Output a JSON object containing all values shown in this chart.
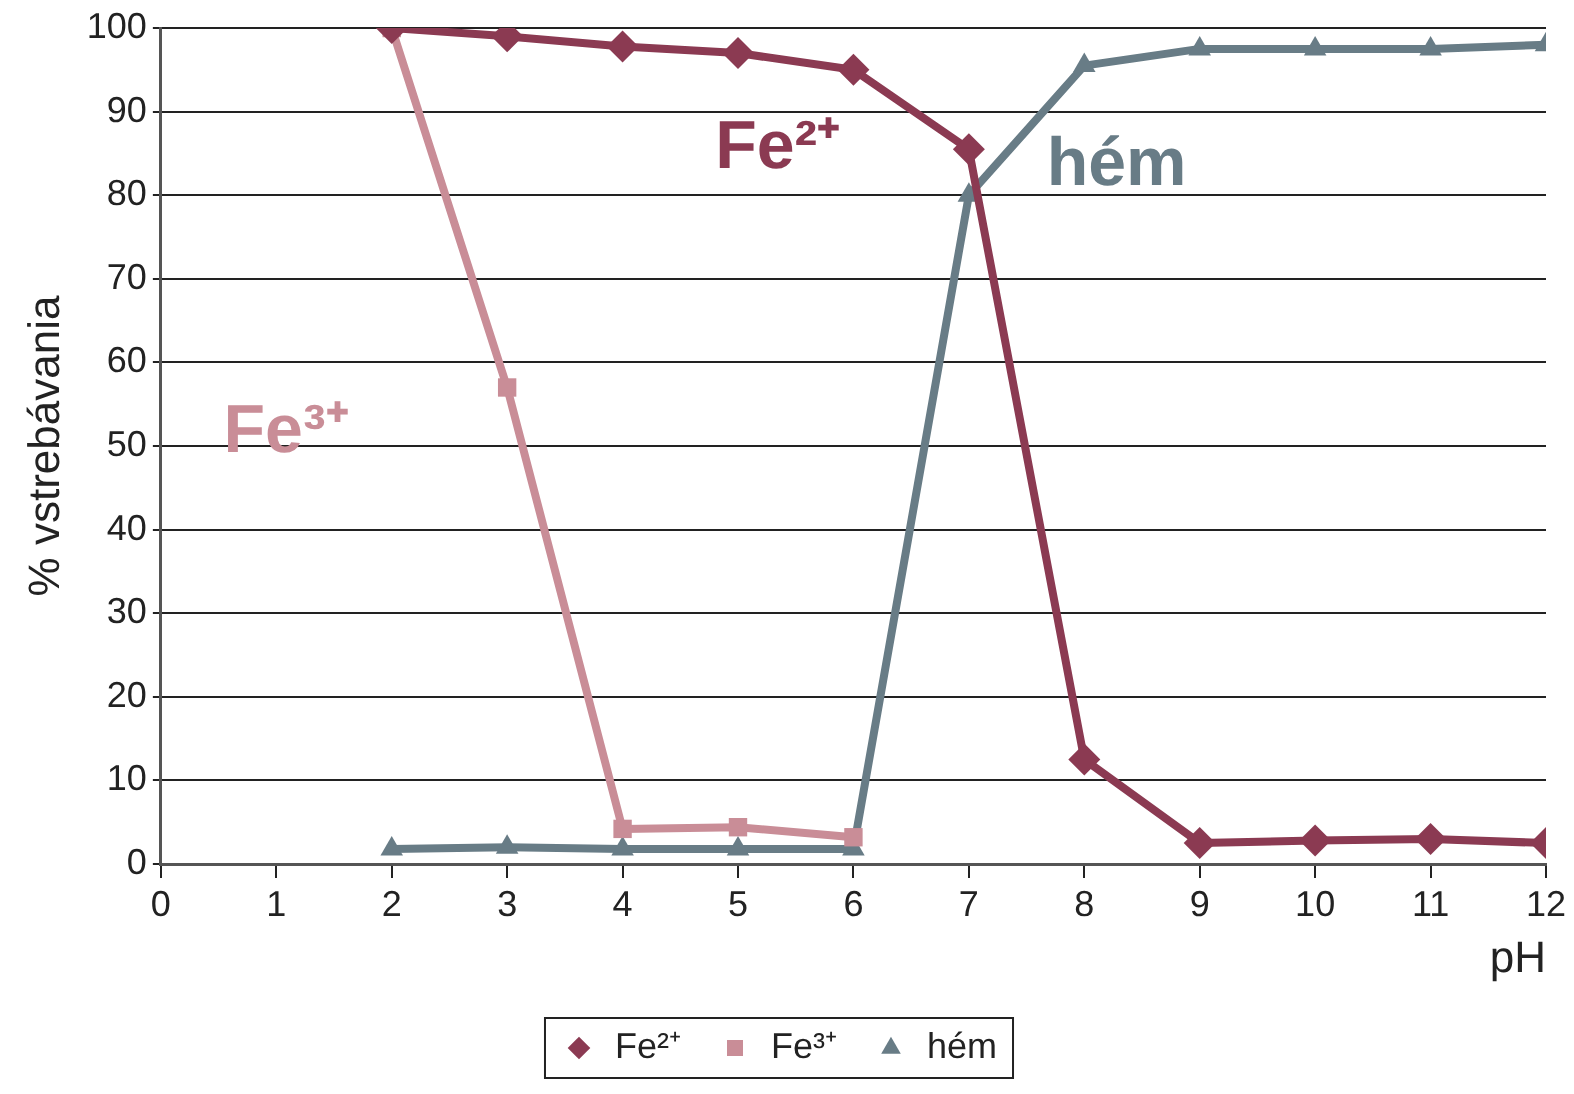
{
  "chart_data": {
    "type": "line",
    "xlabel": "pH",
    "ylabel": "% vstrebávania",
    "xlim": [
      0,
      12
    ],
    "xticks": [
      0,
      1,
      2,
      3,
      4,
      5,
      6,
      7,
      8,
      9,
      10,
      11,
      12
    ],
    "ylim": [
      0,
      100
    ],
    "yticks": [
      0,
      10,
      20,
      30,
      40,
      50,
      60,
      70,
      80,
      90,
      100
    ],
    "grid": "y",
    "legend": "bottom",
    "line_style": "solid",
    "series": [
      {
        "name": "Fe²⁺",
        "color": "#8b3a52",
        "marker": "diamond",
        "x": [
          2,
          3,
          4,
          5,
          6,
          7,
          8,
          9,
          10,
          11,
          12
        ],
        "values": [
          100,
          99,
          97.8,
          97,
          95,
          85.5,
          12.5,
          2.5,
          2.8,
          3,
          2.5
        ]
      },
      {
        "name": "Fe³⁺",
        "color": "#c98d97",
        "marker": "square",
        "x": [
          2,
          3,
          4,
          5,
          6
        ],
        "values": [
          100,
          57,
          4.2,
          4.4,
          3.2
        ]
      },
      {
        "name": "hém",
        "color": "#687c86",
        "marker": "triangle",
        "x": [
          2,
          3,
          4,
          5,
          6,
          7,
          8,
          9,
          10,
          11,
          12
        ],
        "values": [
          1.8,
          2,
          1.8,
          1.8,
          1.8,
          80,
          95.5,
          97.5,
          97.5,
          97.5,
          98
        ]
      }
    ],
    "annotations": [
      "Fe²⁺",
      "Fe³⁺",
      "hém"
    ]
  }
}
